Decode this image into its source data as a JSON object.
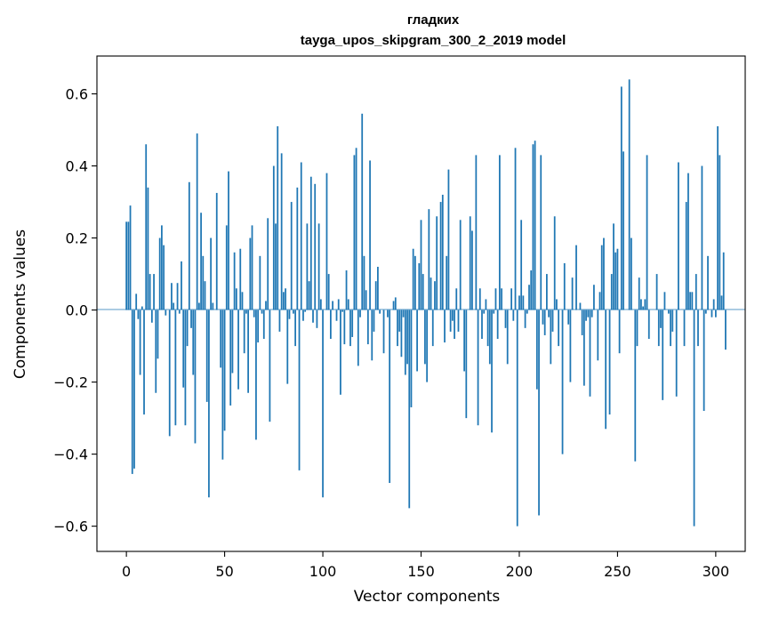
{
  "chart_data": {
    "type": "bar",
    "title": "гладких",
    "subtitle": "tayga_upos_skipgram_300_2_2019 model",
    "xlabel": "Vector components",
    "ylabel": "Components values",
    "xlim": [
      -15,
      315
    ],
    "ylim": [
      -0.67,
      0.705
    ],
    "x_ticks": [
      0,
      50,
      100,
      150,
      200,
      250,
      300
    ],
    "x_tick_labels": [
      "0",
      "50",
      "100",
      "150",
      "200",
      "250",
      "300"
    ],
    "y_ticks": [
      -0.6,
      -0.4,
      -0.2,
      0.0,
      0.2,
      0.4,
      0.6
    ],
    "y_tick_labels": [
      "−0.6",
      "−0.4",
      "−0.2",
      "0.0",
      "0.2",
      "0.4",
      "0.6"
    ],
    "bar_color": "#1f77b4",
    "grid": false,
    "legend": "none",
    "values": [
      0.245,
      0.245,
      0.29,
      -0.455,
      -0.44,
      0.045,
      -0.025,
      -0.18,
      0.01,
      -0.29,
      0.46,
      0.34,
      0.1,
      -0.035,
      0.1,
      -0.23,
      -0.135,
      0.2,
      0.235,
      0.18,
      -0.015,
      0.0,
      -0.35,
      0.075,
      0.02,
      -0.32,
      0.075,
      -0.01,
      0.135,
      -0.215,
      -0.32,
      -0.1,
      0.355,
      -0.05,
      -0.18,
      -0.37,
      0.49,
      0.02,
      0.27,
      0.15,
      0.08,
      -0.255,
      -0.52,
      0.2,
      0.02,
      0.0,
      0.325,
      0.0,
      -0.16,
      -0.415,
      -0.335,
      0.235,
      0.385,
      -0.265,
      -0.175,
      0.16,
      0.06,
      -0.22,
      0.17,
      0.05,
      -0.12,
      -0.01,
      -0.23,
      0.2,
      0.235,
      -0.02,
      -0.36,
      -0.09,
      0.15,
      -0.01,
      -0.08,
      0.025,
      0.255,
      -0.31,
      0.0,
      0.4,
      0.24,
      0.51,
      -0.06,
      0.435,
      0.05,
      0.06,
      -0.205,
      -0.025,
      0.3,
      -0.01,
      -0.1,
      0.34,
      -0.445,
      0.41,
      -0.03,
      -0.005,
      0.24,
      0.08,
      0.37,
      -0.035,
      0.35,
      -0.05,
      0.24,
      0.03,
      -0.52,
      0.0,
      0.38,
      0.1,
      -0.08,
      0.025,
      0.0,
      -0.03,
      0.03,
      -0.235,
      -0.005,
      -0.095,
      0.11,
      0.03,
      -0.1,
      -0.075,
      0.43,
      0.45,
      -0.155,
      -0.02,
      0.545,
      0.15,
      0.055,
      -0.095,
      0.415,
      -0.14,
      -0.06,
      0.08,
      0.12,
      -0.01,
      0.0,
      -0.12,
      0.0,
      -0.02,
      -0.48,
      0.0,
      0.025,
      0.035,
      -0.1,
      -0.06,
      -0.13,
      -0.02,
      -0.18,
      -0.15,
      -0.55,
      -0.27,
      0.17,
      0.15,
      -0.17,
      0.13,
      0.25,
      0.1,
      -0.15,
      -0.2,
      0.28,
      0.09,
      -0.1,
      0.08,
      0.26,
      0.0,
      0.3,
      0.32,
      -0.09,
      0.15,
      0.39,
      -0.06,
      -0.03,
      -0.08,
      0.06,
      -0.06,
      0.25,
      0.0,
      -0.17,
      -0.3,
      0.0,
      0.26,
      0.22,
      0.0,
      0.43,
      -0.32,
      0.06,
      -0.08,
      -0.01,
      0.03,
      -0.1,
      -0.15,
      -0.34,
      -0.01,
      0.06,
      -0.08,
      0.43,
      0.06,
      0.0,
      -0.05,
      -0.15,
      0.0,
      0.06,
      -0.03,
      0.45,
      -0.6,
      0.04,
      0.25,
      0.04,
      -0.05,
      -0.01,
      0.07,
      0.11,
      0.46,
      0.47,
      -0.22,
      -0.57,
      0.43,
      -0.04,
      -0.07,
      0.1,
      -0.02,
      -0.15,
      -0.06,
      0.26,
      0.03,
      -0.1,
      0.0,
      -0.4,
      0.13,
      0.0,
      -0.04,
      -0.2,
      0.09,
      0.0,
      0.18,
      0.0,
      0.02,
      -0.07,
      -0.21,
      -0.03,
      -0.02,
      -0.24,
      -0.02,
      0.07,
      0.0,
      -0.14,
      0.05,
      0.18,
      0.2,
      -0.33,
      0.0,
      -0.29,
      0.1,
      0.24,
      0.16,
      0.17,
      -0.12,
      0.62,
      0.44,
      0.0,
      0.0,
      0.64,
      0.2,
      0.0,
      -0.42,
      -0.1,
      0.09,
      0.03,
      0.01,
      0.03,
      0.43,
      -0.08,
      0.0,
      0.0,
      0.0,
      0.1,
      -0.1,
      -0.05,
      -0.25,
      0.05,
      0.0,
      -0.01,
      -0.1,
      -0.06,
      0.0,
      -0.24,
      0.41,
      0.0,
      0.0,
      -0.1,
      0.3,
      0.38,
      0.05,
      0.05,
      -0.6,
      0.1,
      -0.1,
      0.0,
      0.4,
      -0.28,
      -0.01,
      0.15,
      0.0,
      -0.02,
      0.03,
      -0.02,
      0.51,
      0.43,
      0.04,
      0.16,
      -0.11
    ]
  }
}
